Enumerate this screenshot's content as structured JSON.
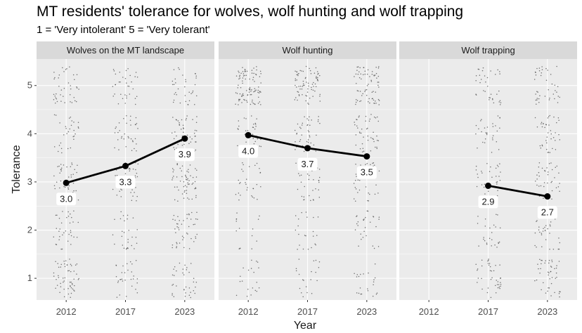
{
  "chart_data": {
    "type": "scatter",
    "title": "MT residents' tolerance for wolves, wolf hunting and wolf trapping",
    "subtitle": "1 = 'Very intolerant'   5 = 'Very tolerant'",
    "xlabel": "Year",
    "ylabel": "Tolerance",
    "categories": [
      "2012",
      "2017",
      "2023"
    ],
    "y_ticks": [
      1,
      2,
      3,
      4,
      5
    ],
    "ylim": [
      0.55,
      5.55
    ],
    "grid": true,
    "panels": [
      {
        "name": "Wolves on the MT landscape",
        "means": [
          {
            "x": "2012",
            "y": 2.98,
            "label": "3.0"
          },
          {
            "x": "2017",
            "y": 3.33,
            "label": "3.3"
          },
          {
            "x": "2023",
            "y": 3.9,
            "label": "3.9"
          }
        ],
        "point_density": {
          "2012": [
            55,
            35,
            45,
            30,
            40
          ],
          "2017": [
            30,
            28,
            40,
            35,
            35
          ],
          "2023": [
            35,
            45,
            60,
            50,
            35
          ]
        }
      },
      {
        "name": "Wolf hunting",
        "means": [
          {
            "x": "2012",
            "y": 3.97,
            "label": "4.0"
          },
          {
            "x": "2017",
            "y": 3.7,
            "label": "3.7"
          },
          {
            "x": "2023",
            "y": 3.53,
            "label": "3.5"
          }
        ],
        "point_density": {
          "2012": [
            20,
            15,
            30,
            40,
            95
          ],
          "2017": [
            20,
            22,
            35,
            40,
            75
          ],
          "2023": [
            22,
            28,
            40,
            45,
            70
          ]
        }
      },
      {
        "name": "Wolf trapping",
        "means": [
          {
            "x": "2017",
            "y": 2.92,
            "label": "2.9"
          },
          {
            "x": "2023",
            "y": 2.7,
            "label": "2.7"
          }
        ],
        "point_density": {
          "2017": [
            40,
            25,
            35,
            30,
            35
          ],
          "2023": [
            45,
            30,
            40,
            40,
            40
          ]
        }
      }
    ],
    "colors": {
      "panel_bg": "#ebebeb",
      "strip_bg": "#d9d9d9",
      "grid": "#ffffff",
      "points": "#4d4d4d",
      "line": "#000000"
    }
  }
}
